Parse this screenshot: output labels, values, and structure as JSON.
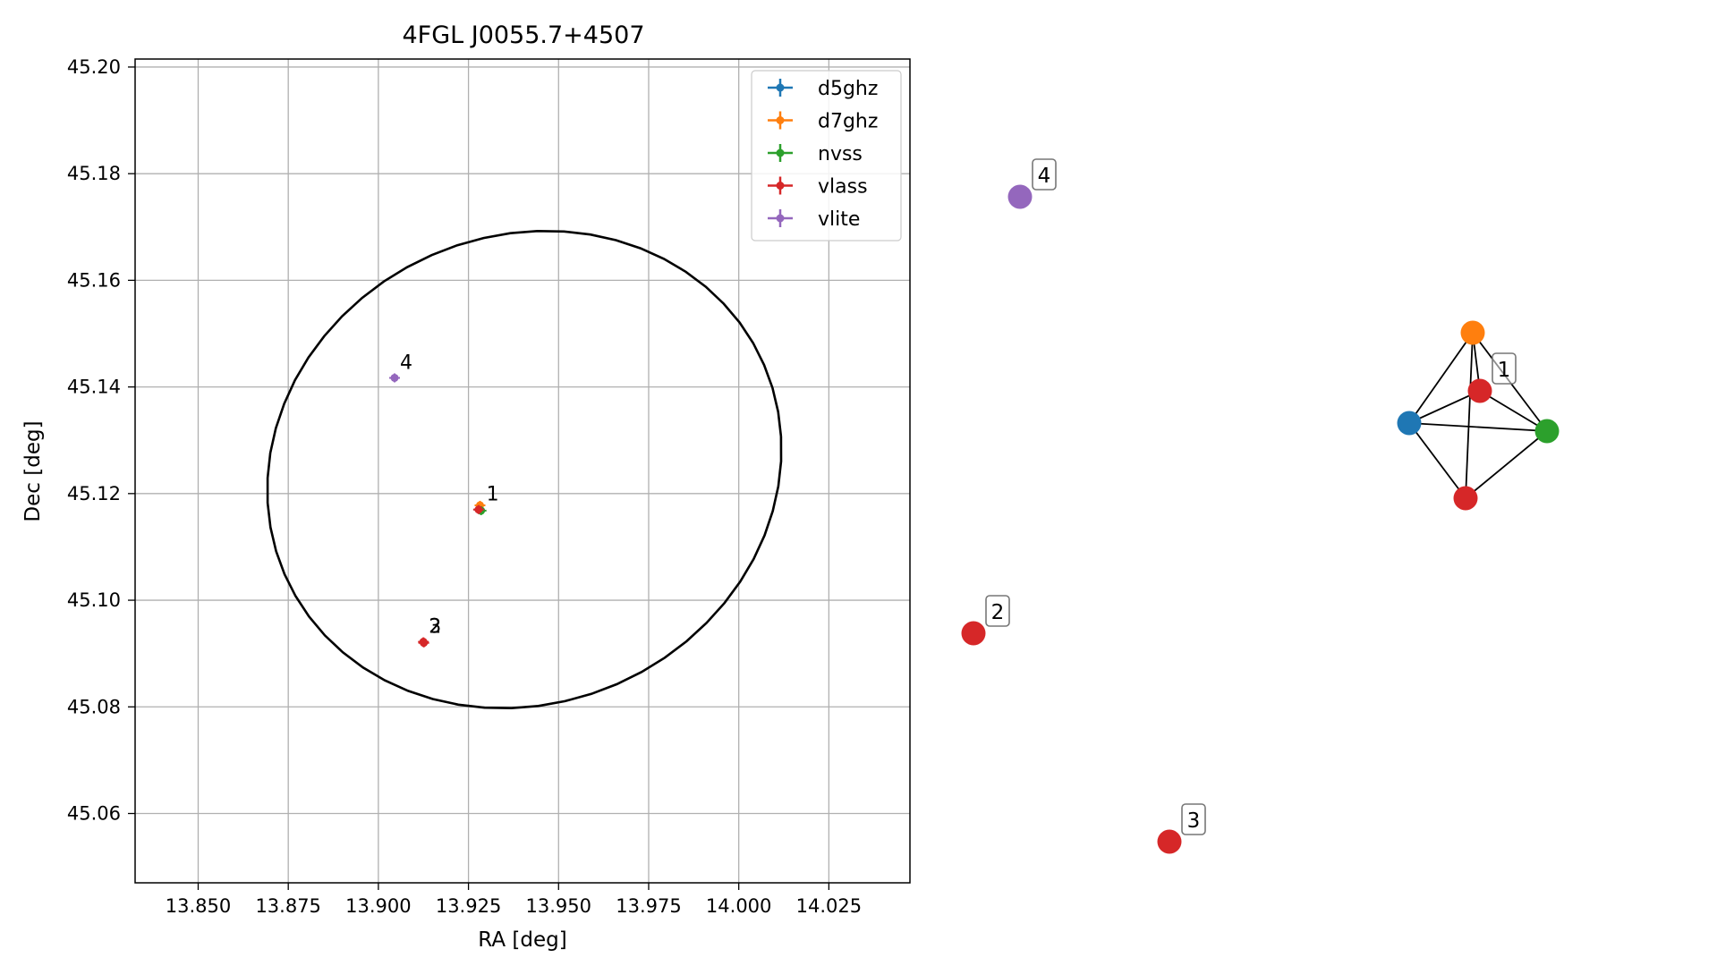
{
  "colors": {
    "d5ghz": "#1f77b4",
    "d7ghz": "#ff7f0e",
    "nvss": "#2ca02c",
    "vlass": "#d62728",
    "vlite": "#9467bd",
    "grid": "#b0b0b0",
    "axis": "#000000"
  },
  "chart_data": [
    {
      "type": "scatter",
      "title": "4FGL J0055.7+4507",
      "xlabel": "RA [deg]",
      "ylabel": "Dec [deg]",
      "xlim": [
        13.8325,
        14.0475
      ],
      "ylim": [
        45.047,
        45.2015
      ],
      "xticks": [
        13.85,
        13.875,
        13.9,
        13.925,
        13.95,
        13.975,
        14.0,
        14.025
      ],
      "xtick_labels": [
        "13.850",
        "13.875",
        "13.900",
        "13.925",
        "13.950",
        "13.975",
        "14.000",
        "14.025"
      ],
      "yticks": [
        45.06,
        45.08,
        45.1,
        45.12,
        45.14,
        45.16,
        45.18,
        45.2
      ],
      "ytick_labels": [
        "45.06",
        "45.08",
        "45.10",
        "45.12",
        "45.14",
        "45.16",
        "45.18",
        "45.20"
      ],
      "grid": true,
      "legend_position": "top-right",
      "error_ellipse": {
        "center": [
          13.9405,
          45.1245
        ],
        "semi_axes": [
          0.0715,
          0.0445
        ],
        "angle_deg": 5
      },
      "series": [
        {
          "name": "d5ghz",
          "points": [
            {
              "x": 13.928,
              "y": 45.117
            }
          ]
        },
        {
          "name": "d7ghz",
          "points": [
            {
              "x": 13.9282,
              "y": 45.1178
            }
          ]
        },
        {
          "name": "nvss",
          "points": [
            {
              "x": 13.9285,
              "y": 45.1168
            }
          ]
        },
        {
          "name": "vlass",
          "points": [
            {
              "x": 13.9278,
              "y": 45.117
            },
            {
              "x": 13.9125,
              "y": 45.0922
            },
            {
              "x": 13.9126,
              "y": 45.092
            }
          ]
        },
        {
          "name": "vlite",
          "points": [
            {
              "x": 13.9045,
              "y": 45.1417
            }
          ]
        }
      ],
      "annotations": [
        {
          "text": "1",
          "x": 13.9285,
          "y": 45.117
        },
        {
          "text": "2",
          "x": 13.9125,
          "y": 45.0922
        },
        {
          "text": "3",
          "x": 13.9125,
          "y": 45.0922
        },
        {
          "text": "4",
          "x": 13.9045,
          "y": 45.1417
        }
      ]
    },
    {
      "type": "network",
      "axes": false,
      "nodes": [
        {
          "id": "d5ghz",
          "series": "d5ghz",
          "label": ""
        },
        {
          "id": "d7ghz",
          "series": "d7ghz",
          "label": ""
        },
        {
          "id": "nvss",
          "series": "nvss",
          "label": ""
        },
        {
          "id": "vlass_a",
          "series": "vlass",
          "label": ""
        },
        {
          "id": "vlass_b",
          "series": "vlass",
          "label": ""
        },
        {
          "id": "vlass_1",
          "series": "vlass",
          "label": "1"
        },
        {
          "id": "vlass_2",
          "series": "vlass",
          "label": "2"
        },
        {
          "id": "vlass_3",
          "series": "vlass",
          "label": "3"
        },
        {
          "id": "vlite_4",
          "series": "vlite",
          "label": "4"
        }
      ],
      "edges": [
        [
          "d7ghz",
          "d5ghz"
        ],
        [
          "d7ghz",
          "nvss"
        ],
        [
          "d7ghz",
          "vlass_b"
        ],
        [
          "d7ghz",
          "vlass_a"
        ],
        [
          "d5ghz",
          "nvss"
        ],
        [
          "d5ghz",
          "vlass_b"
        ],
        [
          "nvss",
          "vlass_b"
        ],
        [
          "d5ghz",
          "vlass_a"
        ],
        [
          "nvss",
          "vlass_a"
        ]
      ]
    }
  ]
}
